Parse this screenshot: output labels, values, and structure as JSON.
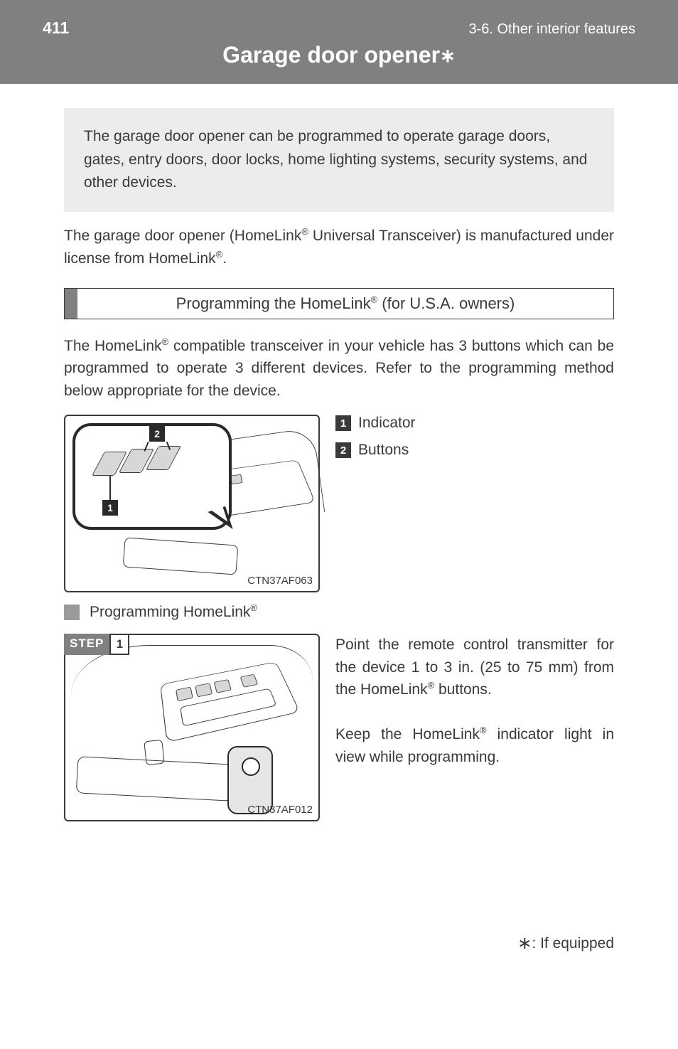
{
  "header": {
    "page_number": "411",
    "breadcrumb": "3-6. Other interior features",
    "title_prefix": "Garage door opener",
    "asterisk": "∗"
  },
  "intro": {
    "text_before": "The garage door opener can be programmed to operate garage doors, gates, entry doors, door locks, home lighting systems, security systems, and other devices."
  },
  "note": {
    "line1_before": "The garage door opener (HomeLink",
    "line1_after": " Universal Transceiver) is manufactured under license from HomeLink",
    "line1_end": "."
  },
  "section_bar": {
    "before": "Programming the HomeLink",
    "after": " (for U.S.A. owners)"
  },
  "program_intro": {
    "before": "The HomeLink",
    "after": " compatible transceiver in your vehicle has 3 buttons which can be programmed to operate 3 different devices. Refer to the programming method below appropriate for the device."
  },
  "callouts": {
    "item1": "Indicator",
    "item2": "Buttons"
  },
  "diagram_codes": {
    "d1": "CTN37AF063",
    "d2": "CTN37AF012"
  },
  "sub_heading": {
    "before": "Programming HomeLink"
  },
  "step_label": "STEP",
  "step_number": "1",
  "step1_text": {
    "segment1": "Point the remote control transmitter for the device 1 to 3 in. (25 to 75 mm) from the HomeLink",
    "segment2": " buttons.",
    "segment3": "Keep the HomeLink",
    "segment4": " indicator light in view while programming."
  },
  "footnote": ": If equipped",
  "colors": {
    "band": "#808080",
    "intro_bg": "#ececec",
    "text": "#3a3a3a",
    "bullet": "#9a9a9a"
  }
}
